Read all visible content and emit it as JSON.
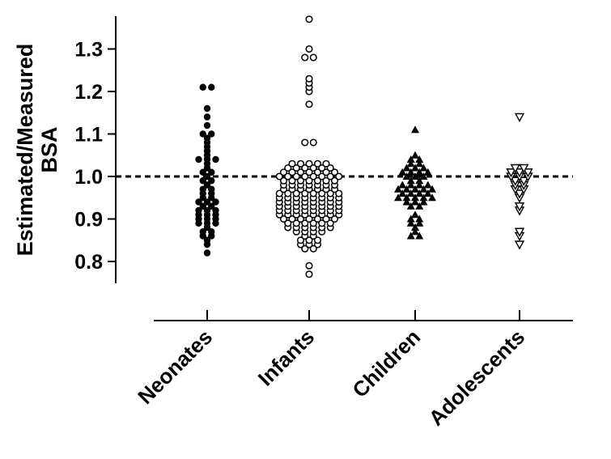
{
  "chart_data": {
    "type": "scatter",
    "subtype": "dot-strip-plot",
    "title": "",
    "xlabel": "",
    "ylabel_lines": [
      "Estimated/Measured",
      "BSA"
    ],
    "ylim": [
      0.75,
      1.38
    ],
    "yticks": [
      0.8,
      0.9,
      1.0,
      1.1,
      1.2,
      1.3
    ],
    "ytick_labels": [
      "0.8",
      "0.9",
      "1.0",
      "1.1",
      "1.2",
      "1.3"
    ],
    "reference_line": {
      "y": 1.0,
      "style": "dashed"
    },
    "categories": [
      "Neonates",
      "Infants",
      "Children",
      "Adolescents"
    ],
    "series": [
      {
        "name": "Neonates",
        "marker": "filled-circle",
        "values": [
          0.82,
          0.84,
          0.85,
          0.86,
          0.86,
          0.87,
          0.87,
          0.88,
          0.89,
          0.89,
          0.89,
          0.9,
          0.9,
          0.9,
          0.91,
          0.91,
          0.91,
          0.92,
          0.92,
          0.92,
          0.93,
          0.93,
          0.94,
          0.94,
          0.94,
          0.95,
          0.95,
          0.96,
          0.96,
          0.97,
          0.97,
          0.98,
          0.99,
          0.99,
          1.0,
          1.01,
          1.01,
          1.02,
          1.03,
          1.04,
          1.04,
          1.04,
          1.05,
          1.06,
          1.07,
          1.08,
          1.09,
          1.1,
          1.1,
          1.12,
          1.14,
          1.16,
          1.21,
          1.21
        ]
      },
      {
        "name": "Infants",
        "marker": "open-circle",
        "values": [
          0.77,
          0.79,
          0.83,
          0.83,
          0.84,
          0.84,
          0.84,
          0.85,
          0.85,
          0.85,
          0.86,
          0.86,
          0.87,
          0.87,
          0.87,
          0.87,
          0.88,
          0.88,
          0.88,
          0.88,
          0.88,
          0.88,
          0.89,
          0.89,
          0.89,
          0.89,
          0.89,
          0.89,
          0.9,
          0.9,
          0.9,
          0.9,
          0.9,
          0.9,
          0.9,
          0.91,
          0.91,
          0.91,
          0.91,
          0.91,
          0.91,
          0.91,
          0.91,
          0.92,
          0.92,
          0.92,
          0.92,
          0.92,
          0.92,
          0.92,
          0.92,
          0.93,
          0.93,
          0.93,
          0.93,
          0.93,
          0.93,
          0.93,
          0.93,
          0.94,
          0.94,
          0.94,
          0.94,
          0.94,
          0.94,
          0.94,
          0.94,
          0.95,
          0.95,
          0.95,
          0.95,
          0.95,
          0.95,
          0.95,
          0.95,
          0.96,
          0.96,
          0.96,
          0.96,
          0.96,
          0.96,
          0.96,
          0.96,
          0.97,
          0.97,
          0.97,
          0.97,
          0.97,
          0.97,
          0.97,
          0.98,
          0.98,
          0.98,
          0.98,
          0.98,
          0.98,
          0.98,
          0.99,
          0.99,
          0.99,
          0.99,
          0.99,
          0.99,
          0.99,
          1.0,
          1.0,
          1.0,
          1.0,
          1.0,
          1.0,
          1.0,
          1.0,
          1.01,
          1.01,
          1.01,
          1.01,
          1.01,
          1.01,
          1.01,
          1.02,
          1.02,
          1.02,
          1.02,
          1.02,
          1.02,
          1.03,
          1.03,
          1.03,
          1.03,
          1.03,
          1.08,
          1.08,
          1.17,
          1.2,
          1.21,
          1.22,
          1.23,
          1.28,
          1.28,
          1.3,
          1.37
        ]
      },
      {
        "name": "Children",
        "marker": "filled-triangle-up",
        "values": [
          0.86,
          0.86,
          0.87,
          0.88,
          0.89,
          0.89,
          0.9,
          0.9,
          0.91,
          0.93,
          0.93,
          0.94,
          0.94,
          0.94,
          0.95,
          0.95,
          0.95,
          0.95,
          0.95,
          0.96,
          0.96,
          0.96,
          0.96,
          0.97,
          0.97,
          0.97,
          0.97,
          0.97,
          0.98,
          0.98,
          0.98,
          0.98,
          0.99,
          0.99,
          1.0,
          1.0,
          1.0,
          1.01,
          1.01,
          1.01,
          1.01,
          1.02,
          1.02,
          1.02,
          1.03,
          1.03,
          1.04,
          1.04,
          1.05,
          1.11
        ]
      },
      {
        "name": "Adolescents",
        "marker": "open-triangle-down",
        "values": [
          0.84,
          0.86,
          0.87,
          0.92,
          0.93,
          0.95,
          0.96,
          0.97,
          0.97,
          0.98,
          0.98,
          0.99,
          0.99,
          1.0,
          1.0,
          1.0,
          1.01,
          1.01,
          1.01,
          1.02,
          1.02,
          1.14
        ]
      }
    ]
  }
}
